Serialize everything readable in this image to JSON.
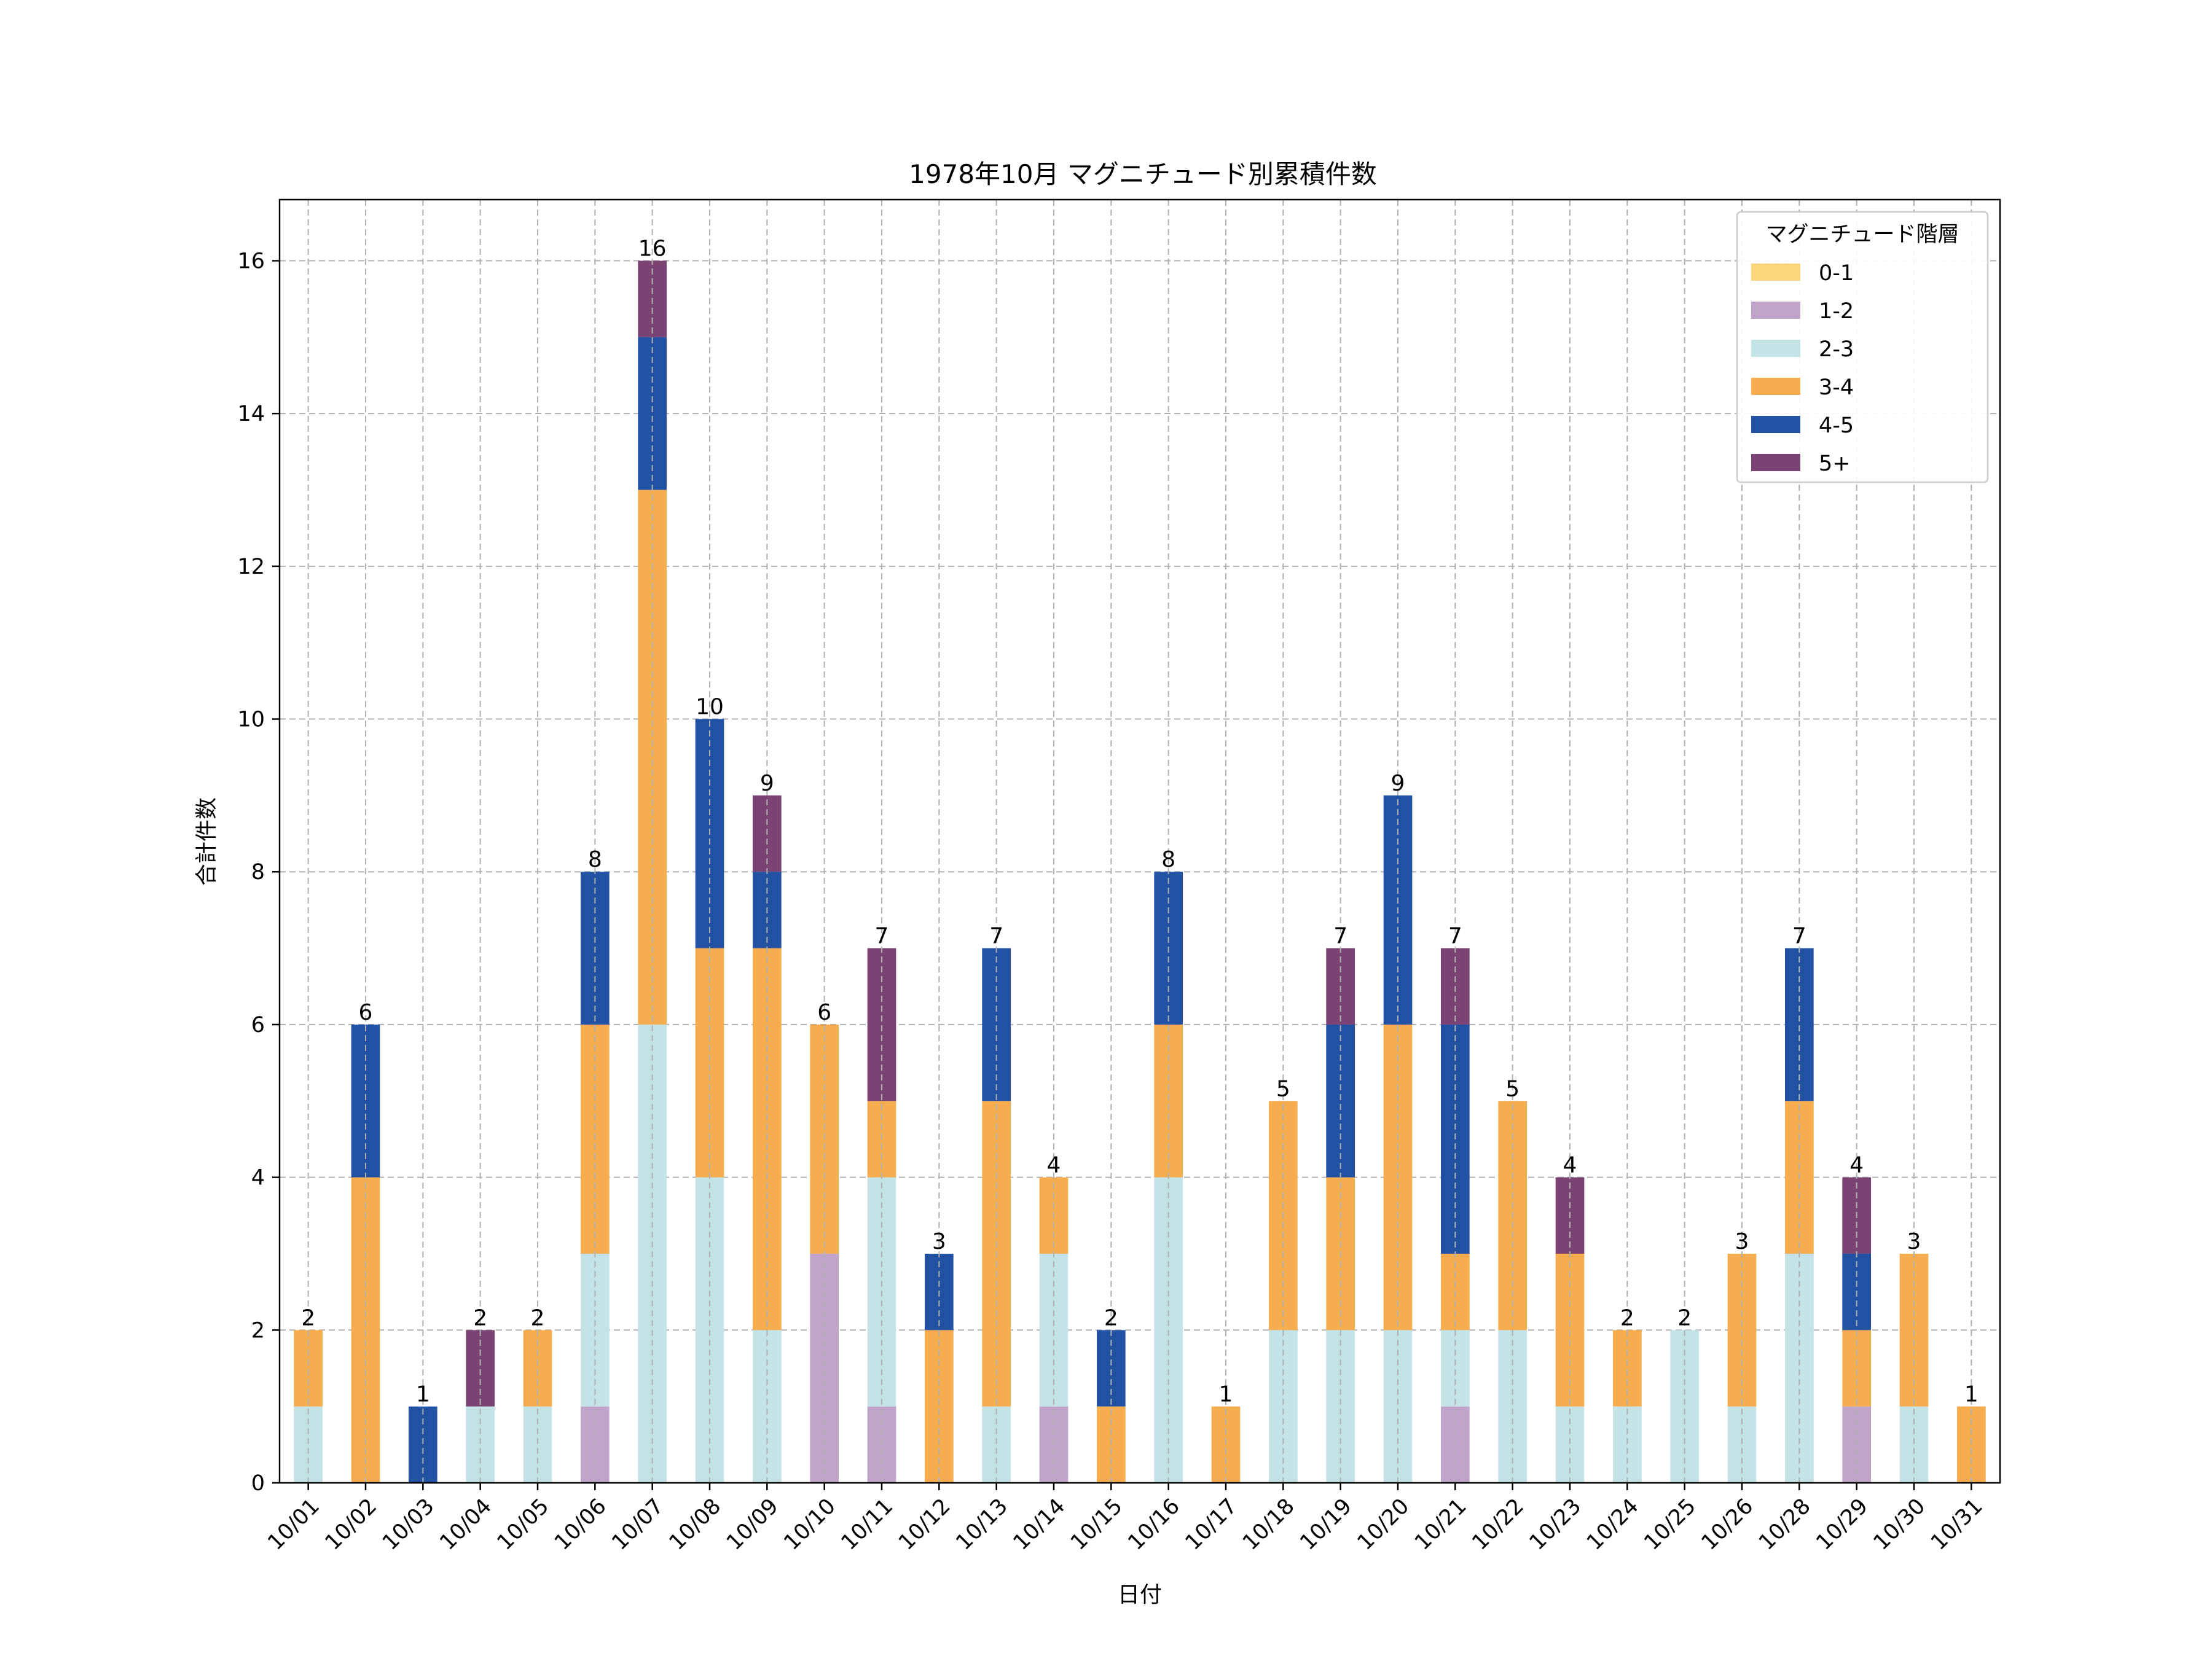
{
  "chart_data": {
    "type": "bar",
    "stacked": true,
    "title": "1978年10月 マグニチュード別累積件数",
    "xlabel": "日付",
    "ylabel": "合計件数",
    "ylim": [
      0,
      16.8
    ],
    "yticks": [
      0,
      2,
      4,
      6,
      8,
      10,
      12,
      14,
      16
    ],
    "grid": true,
    "legend_title": "マグニチュード階層",
    "legend_position": "top-right",
    "categories": [
      "10/01",
      "10/02",
      "10/03",
      "10/04",
      "10/05",
      "10/06",
      "10/07",
      "10/08",
      "10/09",
      "10/10",
      "10/11",
      "10/12",
      "10/13",
      "10/14",
      "10/15",
      "10/16",
      "10/17",
      "10/18",
      "10/19",
      "10/20",
      "10/21",
      "10/22",
      "10/23",
      "10/24",
      "10/25",
      "10/26",
      "10/28",
      "10/29",
      "10/30",
      "10/31"
    ],
    "series": [
      {
        "name": "0-1",
        "color": "#fdd57a",
        "values": [
          0,
          0,
          0,
          0,
          0,
          0,
          0,
          0,
          0,
          0,
          0,
          0,
          0,
          0,
          0,
          0,
          0,
          0,
          0,
          0,
          0,
          0,
          0,
          0,
          0,
          0,
          0,
          0,
          0,
          0
        ]
      },
      {
        "name": "1-2",
        "color": "#c0a4ca",
        "values": [
          0,
          0,
          0,
          0,
          0,
          1,
          0,
          0,
          0,
          3,
          1,
          0,
          0,
          1,
          0,
          0,
          0,
          0,
          0,
          0,
          1,
          0,
          0,
          0,
          0,
          0,
          0,
          1,
          0,
          0
        ]
      },
      {
        "name": "2-3",
        "color": "#c4e3e6",
        "values": [
          1,
          0,
          0,
          1,
          1,
          2,
          6,
          4,
          2,
          0,
          3,
          0,
          1,
          2,
          0,
          4,
          0,
          2,
          2,
          2,
          1,
          2,
          1,
          1,
          2,
          1,
          3,
          0,
          1,
          0
        ]
      },
      {
        "name": "3-4",
        "color": "#f5ad4f",
        "values": [
          1,
          4,
          0,
          0,
          1,
          3,
          7,
          3,
          5,
          3,
          1,
          2,
          4,
          1,
          1,
          2,
          1,
          3,
          2,
          4,
          1,
          3,
          2,
          1,
          0,
          2,
          2,
          1,
          2,
          1
        ]
      },
      {
        "name": "4-5",
        "color": "#2252a3",
        "values": [
          0,
          2,
          1,
          0,
          0,
          2,
          2,
          3,
          1,
          0,
          0,
          1,
          2,
          0,
          1,
          2,
          0,
          0,
          2,
          3,
          3,
          0,
          0,
          0,
          0,
          0,
          2,
          1,
          0,
          0
        ]
      },
      {
        "name": "5+",
        "color": "#7a4374",
        "values": [
          0,
          0,
          0,
          1,
          0,
          0,
          1,
          0,
          1,
          0,
          2,
          0,
          0,
          0,
          0,
          0,
          0,
          0,
          1,
          0,
          1,
          0,
          1,
          0,
          0,
          0,
          0,
          1,
          0,
          0
        ]
      }
    ],
    "totals": [
      2,
      6,
      1,
      2,
      2,
      8,
      16,
      10,
      9,
      6,
      7,
      3,
      7,
      4,
      2,
      8,
      1,
      5,
      7,
      9,
      7,
      5,
      4,
      2,
      2,
      3,
      7,
      4,
      3,
      1
    ]
  }
}
